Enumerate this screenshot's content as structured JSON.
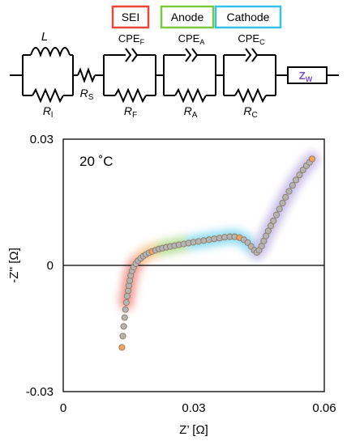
{
  "circuit": {
    "groups": [
      {
        "label": "SEI",
        "color": "#e8463a"
      },
      {
        "label": "Anode",
        "color": "#7ec840"
      },
      {
        "label": "Cathode",
        "color": "#36c2e8"
      }
    ],
    "inductor": {
      "name": "L"
    },
    "resistors": {
      "r_l": {
        "main": "R",
        "sub": "l"
      },
      "r_s": {
        "main": "R",
        "sub": "S"
      },
      "r_f": {
        "main": "R",
        "sub": "F"
      },
      "r_a": {
        "main": "R",
        "sub": "A"
      },
      "r_c": {
        "main": "R",
        "sub": "C"
      }
    },
    "cpes": {
      "cpe_f": {
        "main": "CPE",
        "sub": "F"
      },
      "cpe_a": {
        "main": "CPE",
        "sub": "A"
      },
      "cpe_c": {
        "main": "CPE",
        "sub": "C"
      }
    },
    "warburg": {
      "main": "Z",
      "sub": "W",
      "color": "#7b4fc2"
    }
  },
  "chart_data": {
    "type": "scatter",
    "annotation": "20 ˚C",
    "xlabel": "Z’ [Ω]",
    "ylabel": "-Z'' [Ω]",
    "xlim": [
      0,
      0.06
    ],
    "ylim": [
      -0.03,
      0.03
    ],
    "xticks": [
      "0",
      "0.03",
      "0.06"
    ],
    "yticks": [
      "0.03",
      "0",
      "-0.03"
    ],
    "marker_fill": "#b4b4b4",
    "marker_edge": "#8a7a62",
    "highlight_fill": "#f2a45f",
    "x": [
      0.0135,
      0.0137,
      0.0139,
      0.0141,
      0.0143,
      0.0145,
      0.0147,
      0.0149,
      0.0151,
      0.0153,
      0.0155,
      0.0158,
      0.0162,
      0.0167,
      0.0172,
      0.0178,
      0.0184,
      0.019,
      0.0197,
      0.0204,
      0.0212,
      0.022,
      0.0228,
      0.0237,
      0.0246,
      0.0256,
      0.0266,
      0.0277,
      0.0288,
      0.0299,
      0.0311,
      0.0323,
      0.0335,
      0.0347,
      0.0359,
      0.0371,
      0.0383,
      0.0394,
      0.0405,
      0.0415,
      0.0424,
      0.0432,
      0.0439,
      0.0445,
      0.045,
      0.0456,
      0.0461,
      0.0466,
      0.0471,
      0.0477,
      0.0483,
      0.049,
      0.0497,
      0.0504,
      0.0511,
      0.0519,
      0.0527,
      0.0535,
      0.0543,
      0.0551,
      0.0559,
      0.0566,
      0.0572
    ],
    "y": [
      -0.0195,
      -0.0168,
      -0.0145,
      -0.0124,
      -0.0105,
      -0.0088,
      -0.0073,
      -0.006,
      -0.0048,
      -0.0036,
      -0.0024,
      -0.0013,
      -0.0004,
      0.0004,
      0.0011,
      0.0017,
      0.0022,
      0.0026,
      0.003,
      0.0033,
      0.0036,
      0.0039,
      0.0041,
      0.0043,
      0.0045,
      0.0047,
      0.0049,
      0.0051,
      0.0053,
      0.0055,
      0.0057,
      0.0059,
      0.0061,
      0.0063,
      0.0065,
      0.0067,
      0.0068,
      0.0068,
      0.0066,
      0.0061,
      0.0054,
      0.0045,
      0.0036,
      0.0031,
      0.0036,
      0.0046,
      0.0058,
      0.007,
      0.0082,
      0.0094,
      0.0106,
      0.012,
      0.0134,
      0.0148,
      0.0162,
      0.0176,
      0.019,
      0.0203,
      0.0215,
      0.0227,
      0.0237,
      0.0245,
      0.0253
    ],
    "highlight_indices": [
      0,
      19,
      38,
      62
    ]
  }
}
